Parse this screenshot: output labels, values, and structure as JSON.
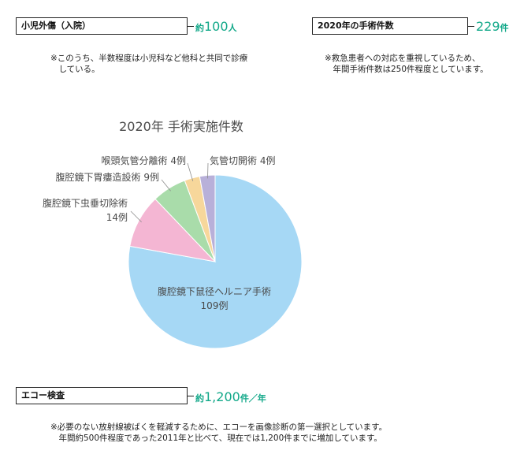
{
  "stats": {
    "pediatric": {
      "label": "小児外傷（入院）",
      "value_prefix": "約",
      "value": "100",
      "unit": "人",
      "note": "※このうち、半数程度は小児科など他科と共同で診療\n　している。"
    },
    "surgeries": {
      "label": "2020年の手術件数",
      "value_prefix": "",
      "value": "229",
      "unit": "件",
      "note": "※救急患者への対応を重視しているため、\n　年間手術件数は250件程度としています。"
    },
    "echo": {
      "label": "エコー検査",
      "value_prefix": "約",
      "value": "1,200",
      "unit": "件／年",
      "note": "※必要のない放射線被ばくを軽減するために、エコーを画像診断の第一選択としています。\n　年間約500件程度であった2011年と比べて、現在では1,200件までに増加しています。"
    }
  },
  "chart_data": {
    "type": "pie",
    "title": "2020年 手術実施件数",
    "slices": [
      {
        "name": "腹腔鏡下鼠径ヘルニア手術",
        "value": 109,
        "value_label": "109例",
        "color": "#a6d8f5"
      },
      {
        "name": "腹腔鏡下虫垂切除術",
        "value": 14,
        "value_label": "14例",
        "color": "#f4b6d3"
      },
      {
        "name": "腹腔鏡下胃瘻造設術",
        "value": 9,
        "value_label": "9例",
        "color": "#a9dcaa"
      },
      {
        "name": "喉頭気管分離術",
        "value": 4,
        "value_label": "4例",
        "color": "#f7d79b"
      },
      {
        "name": "気管切開術",
        "value": 4,
        "value_label": "4例",
        "color": "#b8b0d9"
      }
    ]
  }
}
